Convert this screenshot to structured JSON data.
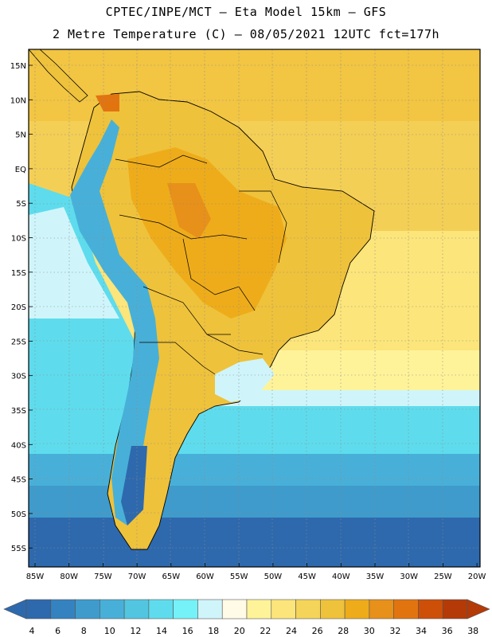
{
  "header": {
    "line1": "CPTEC/INPE/MCT –  Eta Model 15km – GFS",
    "line2": "2 Metre Temperature (C) – 08/05/2021 12UTC fct=177h"
  },
  "map": {
    "lat_labels": [
      "15N",
      "10N",
      "5N",
      "EQ",
      "5S",
      "10S",
      "15S",
      "20S",
      "25S",
      "30S",
      "35S",
      "40S",
      "45S",
      "50S",
      "55S"
    ],
    "lon_labels": [
      "85W",
      "80W",
      "75W",
      "70W",
      "65W",
      "60W",
      "55W",
      "50W",
      "45W",
      "40W",
      "35W",
      "30W",
      "25W",
      "20W"
    ]
  },
  "colorbar": {
    "labels": [
      "4",
      "6",
      "8",
      "10",
      "12",
      "14",
      "16",
      "18",
      "20",
      "22",
      "24",
      "26",
      "28",
      "30",
      "32",
      "34",
      "36",
      "38"
    ],
    "colors": [
      "#2e69ad",
      "#3582c0",
      "#3e9bcc",
      "#48b0d8",
      "#52c6e0",
      "#5edced",
      "#74f2f7",
      "#cff5fb",
      "#fffbe6",
      "#fff39a",
      "#fce57a",
      "#f5d45a",
      "#efc23b",
      "#eeac1a",
      "#e7901a",
      "#e27410",
      "#cd4f08",
      "#b43a07"
    ]
  }
}
